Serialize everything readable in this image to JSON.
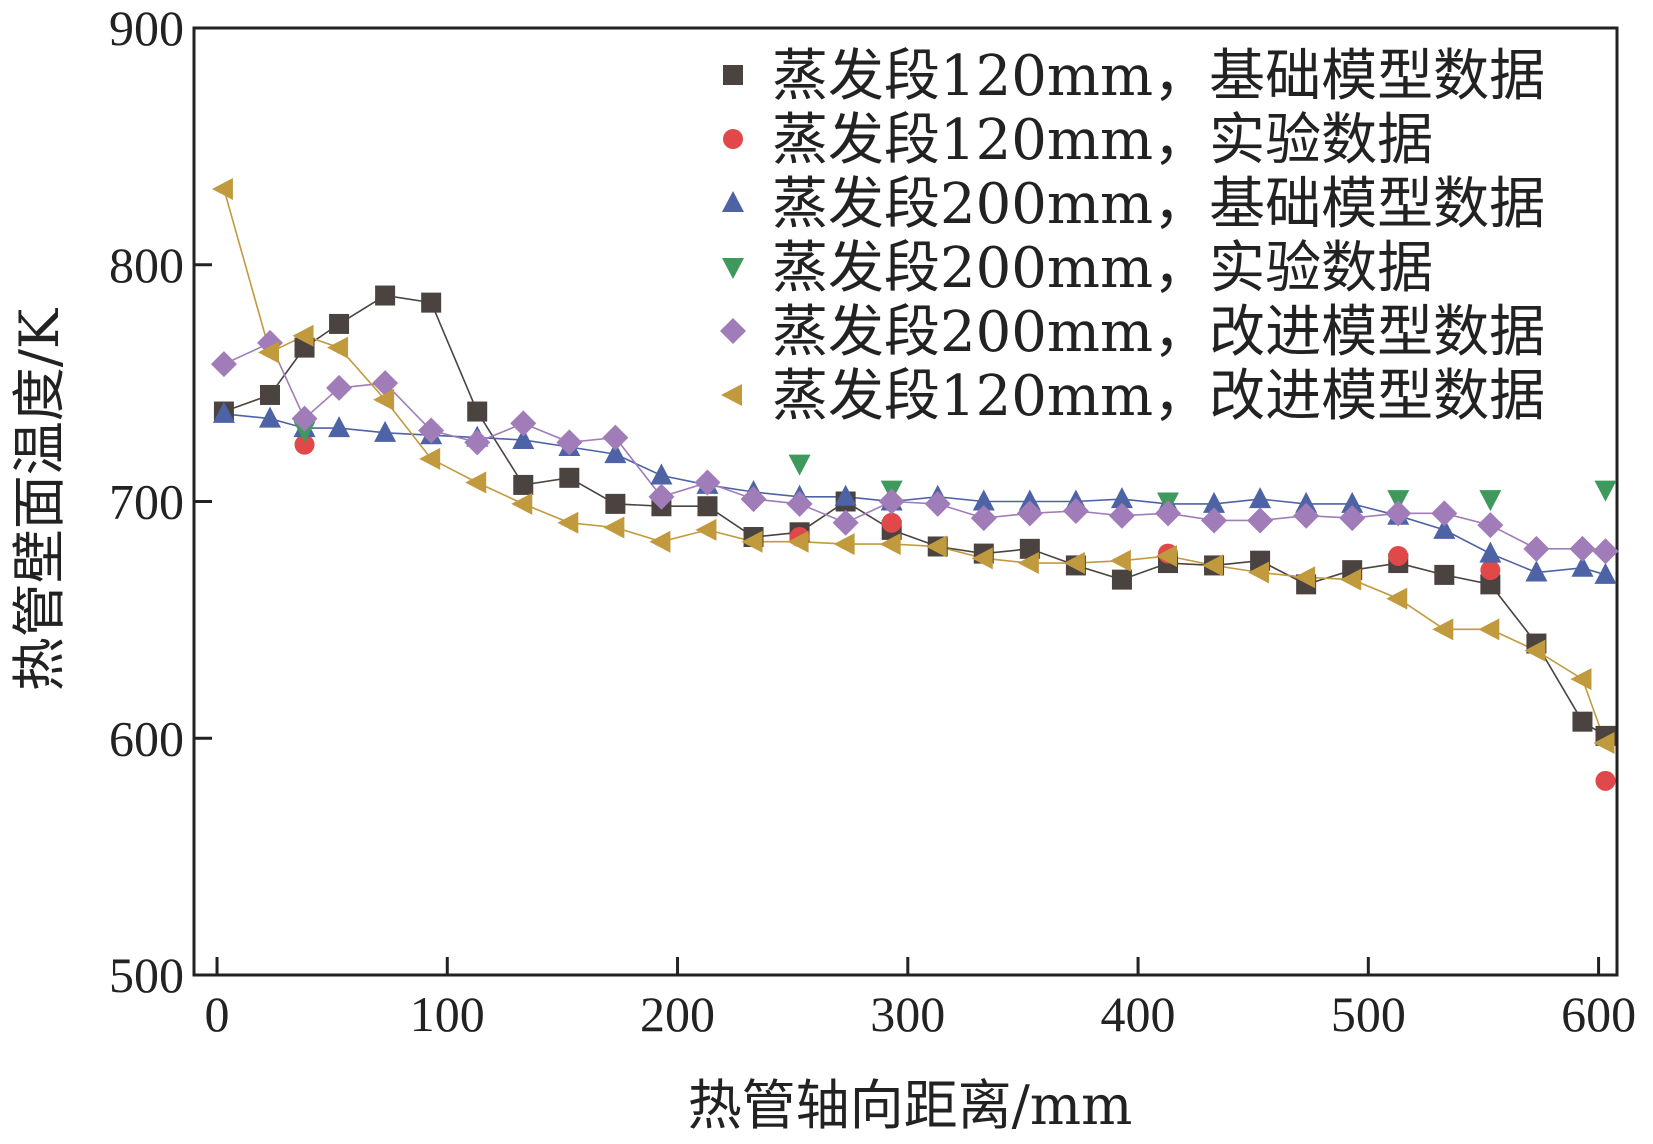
{
  "chart_data": {
    "type": "line",
    "title": "",
    "xlabel": "热管轴向距离/mm",
    "ylabel": "热管壁面温度/K",
    "xlim": [
      -10,
      608
    ],
    "ylim": [
      500,
      900
    ],
    "xticks": [
      0,
      100,
      200,
      300,
      400,
      500,
      600
    ],
    "yticks": [
      500,
      600,
      700,
      800,
      900
    ],
    "grid": false,
    "legend_position": "top-right",
    "series": [
      {
        "name": "蒸发段120mm，基础模型数据",
        "color": "#4a4340",
        "marker": "square",
        "line": true,
        "x": [
          3,
          23,
          38,
          53,
          73,
          93,
          113,
          133,
          153,
          173,
          193,
          213,
          233,
          253,
          273,
          293,
          313,
          333,
          353,
          373,
          393,
          413,
          433,
          453,
          473,
          493,
          513,
          533,
          553,
          573,
          593,
          603
        ],
        "y": [
          738,
          745,
          765,
          775,
          787,
          784,
          738,
          707,
          710,
          699,
          698,
          698,
          685,
          687,
          700,
          688,
          681,
          678,
          680,
          673,
          667,
          674,
          673,
          675,
          665,
          671,
          674,
          669,
          665,
          640,
          607,
          601
        ]
      },
      {
        "name": "蒸发段120mm，实验数据",
        "color": "#e0484a",
        "marker": "circle",
        "line": false,
        "x": [
          38,
          253,
          293,
          413,
          513,
          553,
          603
        ],
        "y": [
          724,
          685,
          691,
          678,
          677,
          671,
          582
        ]
      },
      {
        "name": "蒸发段200mm，基础模型数据",
        "color": "#4e63a6",
        "marker": "triangle-up",
        "line": true,
        "x": [
          3,
          23,
          38,
          53,
          73,
          93,
          113,
          133,
          153,
          173,
          193,
          213,
          233,
          253,
          273,
          293,
          313,
          333,
          353,
          373,
          393,
          413,
          433,
          453,
          473,
          493,
          513,
          533,
          553,
          573,
          593,
          603
        ],
        "y": [
          737,
          735,
          731,
          731,
          729,
          728,
          727,
          726,
          723,
          720,
          711,
          707,
          704,
          702,
          702,
          700,
          702,
          700,
          700,
          700,
          701,
          699,
          699,
          701,
          699,
          699,
          694,
          688,
          678,
          670,
          672,
          669
        ]
      },
      {
        "name": "蒸发段200mm，实验数据",
        "color": "#3e9a5c",
        "marker": "triangle-down",
        "line": false,
        "x": [
          38,
          253,
          293,
          413,
          513,
          553,
          603
        ],
        "y": [
          730,
          716,
          705,
          700,
          701,
          701,
          705
        ]
      },
      {
        "name": "蒸发段200mm，改进模型数据",
        "color": "#a07cb8",
        "marker": "diamond",
        "line": true,
        "x": [
          3,
          23,
          38,
          53,
          73,
          93,
          113,
          133,
          153,
          173,
          193,
          213,
          233,
          253,
          273,
          293,
          313,
          333,
          353,
          373,
          393,
          413,
          433,
          453,
          473,
          493,
          513,
          533,
          553,
          573,
          593,
          603
        ],
        "y": [
          758,
          767,
          735,
          748,
          750,
          730,
          725,
          733,
          725,
          727,
          702,
          708,
          701,
          699,
          691,
          700,
          699,
          693,
          695,
          696,
          694,
          695,
          692,
          692,
          694,
          693,
          695,
          695,
          690,
          680,
          680,
          679
        ]
      },
      {
        "name": "蒸发段120mm，改进模型数据",
        "color": "#c29a3e",
        "marker": "triangle-left",
        "line": true,
        "x": [
          3,
          23,
          38,
          53,
          73,
          93,
          113,
          133,
          153,
          173,
          193,
          213,
          233,
          253,
          273,
          293,
          313,
          333,
          353,
          373,
          393,
          413,
          433,
          453,
          473,
          493,
          513,
          533,
          553,
          573,
          593,
          603
        ],
        "y": [
          832,
          763,
          770,
          765,
          743,
          718,
          708,
          699,
          691,
          689,
          683,
          688,
          683,
          683,
          682,
          682,
          681,
          676,
          674,
          674,
          675,
          677,
          673,
          670,
          668,
          667,
          659,
          646,
          646,
          637,
          625,
          598
        ]
      }
    ]
  }
}
